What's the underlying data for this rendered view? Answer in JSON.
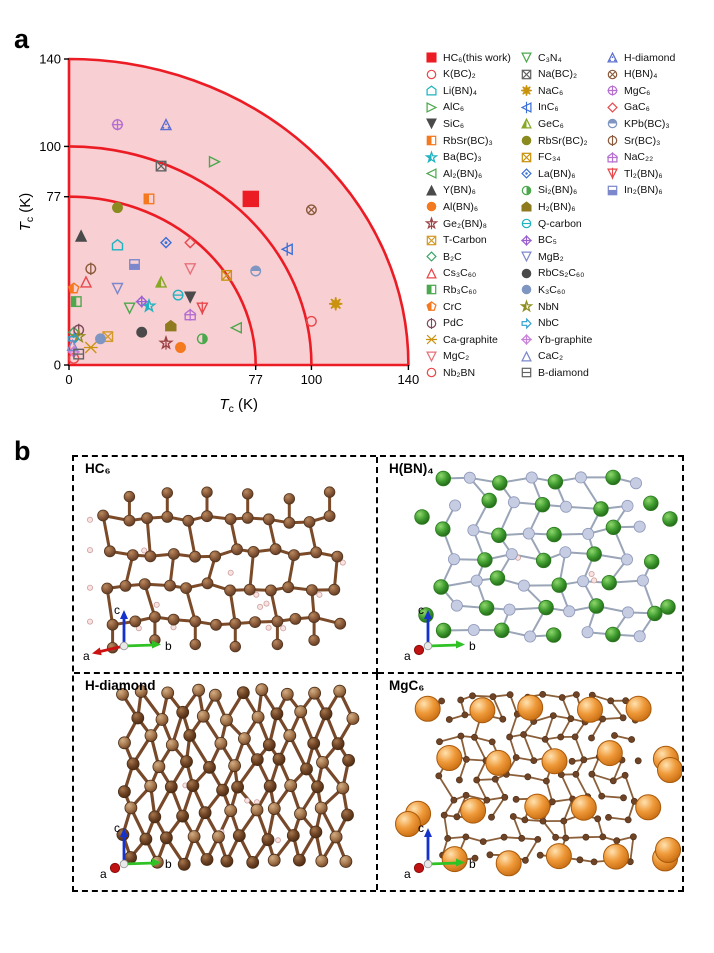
{
  "figure": {
    "panel_a_label": "a",
    "panel_b_label": "b"
  },
  "chart_data": {
    "type": "scatter",
    "xlabel": {
      "main": "T",
      "sub": "c",
      "unit": " (K)"
    },
    "ylabel": {
      "main": "T",
      "sub": "c",
      "unit": " (K)"
    },
    "x_ticks": [
      0,
      77,
      100,
      140
    ],
    "y_ticks": [
      140,
      100,
      77,
      0
    ],
    "xlim": [
      0,
      140
    ],
    "ylim": [
      0,
      140
    ],
    "arcs": [
      77,
      100,
      140
    ],
    "grid": false,
    "legend_position": "right",
    "colors": {
      "arc": "#ec1c24",
      "sector_fill": "#f8cfd3",
      "tick": "#000000"
    },
    "points": [
      {
        "name": "HC₆(this work)",
        "x": 75,
        "y": 76,
        "shape": "square",
        "color": "#ec1c24",
        "fill": "filled",
        "deco": "none",
        "size": 15
      },
      {
        "name": "K(BC)₂",
        "x": 100,
        "y": 20,
        "shape": "circle",
        "color": "#e8474b",
        "fill": "open",
        "deco": "none",
        "size": 9.5
      },
      {
        "name": "Li(BN)₄",
        "x": 20,
        "y": 55,
        "shape": "house",
        "color": "#1fb3c0",
        "fill": "open",
        "deco": "none",
        "size": 10
      },
      {
        "name": "AlC₆",
        "x": 60,
        "y": 93,
        "shape": "triangle-right",
        "color": "#4ca84c",
        "fill": "open",
        "deco": "none",
        "size": 10
      },
      {
        "name": "SiC₆",
        "x": 50,
        "y": 31,
        "shape": "triangle-down",
        "color": "#4a4a4a",
        "fill": "filled",
        "deco": "none",
        "size": 10
      },
      {
        "name": "RbSr(BC)₃",
        "x": 33,
        "y": 76,
        "shape": "square",
        "color": "#f4791f",
        "fill": "half-left",
        "deco": "none",
        "size": 9.5
      },
      {
        "name": "Ba(BC)₃",
        "x": 33,
        "y": 27,
        "shape": "star5",
        "color": "#1fb3c0",
        "fill": "half-left",
        "deco": "none",
        "size": 10
      },
      {
        "name": "Al₂(BN)₆",
        "x": 69,
        "y": 17,
        "shape": "triangle-left",
        "color": "#4ca84c",
        "fill": "open",
        "deco": "none",
        "size": 10
      },
      {
        "name": "Y(BN)₆",
        "x": 5,
        "y": 59,
        "shape": "triangle-up",
        "color": "#4a4a4a",
        "fill": "filled",
        "deco": "none",
        "size": 10
      },
      {
        "name": "Al(BN)₆",
        "x": 46,
        "y": 8,
        "shape": "circle",
        "color": "#f4791f",
        "fill": "filled",
        "deco": "none",
        "size": 9.5
      },
      {
        "name": "Ge₂(BN)₈",
        "x": 40,
        "y": 10,
        "shape": "star5",
        "color": "#9c4444",
        "fill": "open",
        "deco": "vline",
        "size": 10
      },
      {
        "name": "T-Carbon",
        "x": 16,
        "y": 13,
        "shape": "boxx",
        "color": "#d29b2a",
        "fill": "open",
        "deco": "none",
        "size": 9.5
      },
      {
        "name": "B₂C",
        "x": 2,
        "y": 15,
        "shape": "diamond",
        "color": "#3da564",
        "fill": "open",
        "deco": "none",
        "size": 10
      },
      {
        "name": "Cs₃C₆₀",
        "x": 7,
        "y": 38,
        "shape": "triangle-up",
        "color": "#e8474b",
        "fill": "open",
        "deco": "none",
        "size": 10
      },
      {
        "name": "Rb₃C₆₀",
        "x": 3,
        "y": 29,
        "shape": "square",
        "color": "#4ca84c",
        "fill": "half-left",
        "deco": "none",
        "size": 9.5
      },
      {
        "name": "CrC",
        "x": 2,
        "y": 35,
        "shape": "pentagon",
        "color": "#f4791f",
        "fill": "half-left",
        "deco": "none",
        "size": 10
      },
      {
        "name": "PdC",
        "x": 4,
        "y": 16,
        "shape": "circle",
        "color": "#7d4a5a",
        "fill": "open",
        "deco": "vline",
        "size": 9.5
      },
      {
        "name": "Ca-graphite",
        "x": 9,
        "y": 8,
        "shape": "star6",
        "color": "#c9930f",
        "fill": "open",
        "deco": "none",
        "size": 11
      },
      {
        "name": "MgC₂",
        "x": 50,
        "y": 44,
        "shape": "triangle-down",
        "color": "#e8707a",
        "fill": "open",
        "deco": "none",
        "size": 10
      },
      {
        "name": "Nb₂BN",
        "x": 2,
        "y": 3,
        "shape": "circle",
        "color": "#e8474b",
        "fill": "open",
        "deco": "none",
        "size": 9.5
      },
      {
        "name": "C₃N₄",
        "x": 25,
        "y": 26,
        "shape": "triangle-down",
        "color": "#4ca84c",
        "fill": "open",
        "deco": "none",
        "size": 10
      },
      {
        "name": "Na(BC)₂",
        "x": 38,
        "y": 91,
        "shape": "boxx",
        "color": "#636363",
        "fill": "open",
        "deco": "none",
        "size": 9.5
      },
      {
        "name": "NaC₆",
        "x": 110,
        "y": 28,
        "shape": "burst",
        "color": "#c9930f",
        "fill": "filled",
        "deco": "none",
        "size": 11
      },
      {
        "name": "InC₆",
        "x": 90,
        "y": 53,
        "shape": "triangle-left",
        "color": "#3a6fd8",
        "fill": "open",
        "deco": "vline",
        "size": 10
      },
      {
        "name": "GeC₆",
        "x": 38,
        "y": 38,
        "shape": "triangle-up",
        "color": "#86a824",
        "fill": "half-left",
        "deco": "none",
        "size": 10
      },
      {
        "name": "RbSr(BC)₂",
        "x": 20,
        "y": 72,
        "shape": "circle",
        "color": "#8a8a1e",
        "fill": "filled",
        "deco": "none",
        "size": 9.5
      },
      {
        "name": "FC₃₄",
        "x": 65,
        "y": 41,
        "shape": "boxx",
        "color": "#c9930f",
        "fill": "open",
        "deco": "none",
        "size": 9.5
      },
      {
        "name": "La(BN)₆",
        "x": 40,
        "y": 56,
        "shape": "diamond",
        "color": "#3a6fd8",
        "fill": "open",
        "deco": "dot",
        "size": 10
      },
      {
        "name": "Si₂(BN)₆",
        "x": 55,
        "y": 12,
        "shape": "circle",
        "color": "#4ca84c",
        "fill": "half-right",
        "deco": "none",
        "size": 9.5
      },
      {
        "name": "H₂(BN)₆",
        "x": 42,
        "y": 18,
        "shape": "house",
        "color": "#8f7a1f",
        "fill": "filled",
        "deco": "none",
        "size": 10
      },
      {
        "name": "Q-carbon",
        "x": 45,
        "y": 32,
        "shape": "circle",
        "color": "#1fb3c0",
        "fill": "open",
        "deco": "hline",
        "size": 9.5
      },
      {
        "name": "BC₅",
        "x": 30,
        "y": 29,
        "shape": "diamond",
        "color": "#9a5fd1",
        "fill": "open",
        "deco": "plus",
        "size": 10
      },
      {
        "name": "MgB₂",
        "x": 20,
        "y": 35,
        "shape": "triangle-down",
        "color": "#7d88cc",
        "fill": "open",
        "deco": "none",
        "size": 10
      },
      {
        "name": "RbCs₂C₆₀",
        "x": 30,
        "y": 15,
        "shape": "circle",
        "color": "#4a4a4a",
        "fill": "filled",
        "deco": "none",
        "size": 9.5
      },
      {
        "name": "K₃C₆₀",
        "x": 13,
        "y": 12,
        "shape": "circle",
        "color": "#7f96c2",
        "fill": "filled",
        "deco": "none",
        "size": 9.5
      },
      {
        "name": "NbN",
        "x": 4,
        "y": 13,
        "shape": "star5",
        "color": "#8f8f1f",
        "fill": "half-left",
        "deco": "none",
        "size": 10
      },
      {
        "name": "NbC",
        "x": 2,
        "y": 12,
        "shape": "arrow-right",
        "color": "#2a9fd1",
        "fill": "open",
        "deco": "none",
        "size": 10
      },
      {
        "name": "Yb-graphite",
        "x": 2,
        "y": 6,
        "shape": "diamond",
        "color": "#c77fd9",
        "fill": "open",
        "deco": "plus",
        "size": 10
      },
      {
        "name": "CaC₂",
        "x": 1.5,
        "y": 9,
        "shape": "triangle-up",
        "color": "#7d88cc",
        "fill": "open",
        "deco": "none",
        "size": 10
      },
      {
        "name": "B-diamond",
        "x": 4,
        "y": 5,
        "shape": "square",
        "color": "#636363",
        "fill": "open",
        "deco": "hline",
        "size": 9.5
      },
      {
        "name": "H-diamond",
        "x": 40,
        "y": 110,
        "shape": "triangle-up",
        "color": "#5b6fd1",
        "fill": "open",
        "deco": "dots",
        "size": 10
      },
      {
        "name": "H(BN)₄",
        "x": 100,
        "y": 71,
        "shape": "circle",
        "color": "#8a5a3b",
        "fill": "open",
        "deco": "x",
        "size": 9.5
      },
      {
        "name": "MgC₆",
        "x": 20,
        "y": 110,
        "shape": "circle",
        "color": "#b46fd0",
        "fill": "open",
        "deco": "plus",
        "size": 9.5
      },
      {
        "name": "GaC₆",
        "x": 50,
        "y": 56,
        "shape": "diamond",
        "color": "#e8474b",
        "fill": "open",
        "deco": "none",
        "size": 10
      },
      {
        "name": "KPb(BC)₃",
        "x": 77,
        "y": 43,
        "shape": "circle",
        "color": "#7f96c2",
        "fill": "half-top",
        "deco": "none",
        "size": 9.5
      },
      {
        "name": "Sr(BC)₃",
        "x": 9,
        "y": 44,
        "shape": "circle",
        "color": "#8a5a3b",
        "fill": "open",
        "deco": "vline",
        "size": 9.5
      },
      {
        "name": "NaC₂₂",
        "x": 50,
        "y": 23,
        "shape": "house",
        "color": "#b46fd0",
        "fill": "open",
        "deco": "plus",
        "size": 10
      },
      {
        "name": "Tl₂(BN)₆",
        "x": 55,
        "y": 26,
        "shape": "triangle-down",
        "color": "#e8474b",
        "fill": "open",
        "deco": "vline",
        "size": 10
      },
      {
        "name": "In₂(BN)₆",
        "x": 27,
        "y": 46,
        "shape": "square",
        "color": "#7d88cc",
        "fill": "half-bottom",
        "deco": "hline",
        "size": 9.5
      }
    ]
  },
  "legend": {
    "columns": [
      20,
      20,
      9
    ]
  },
  "panel_b": {
    "quadrants": [
      {
        "label": "HC₆",
        "type": "hc6"
      },
      {
        "label": "H(BN)₄",
        "type": "hbn4"
      },
      {
        "label": "H-diamond",
        "type": "hdiamond"
      },
      {
        "label": "MgC₆",
        "type": "mgc6"
      }
    ],
    "axis_labels": {
      "a": "a",
      "b": "b",
      "c": "c"
    }
  }
}
